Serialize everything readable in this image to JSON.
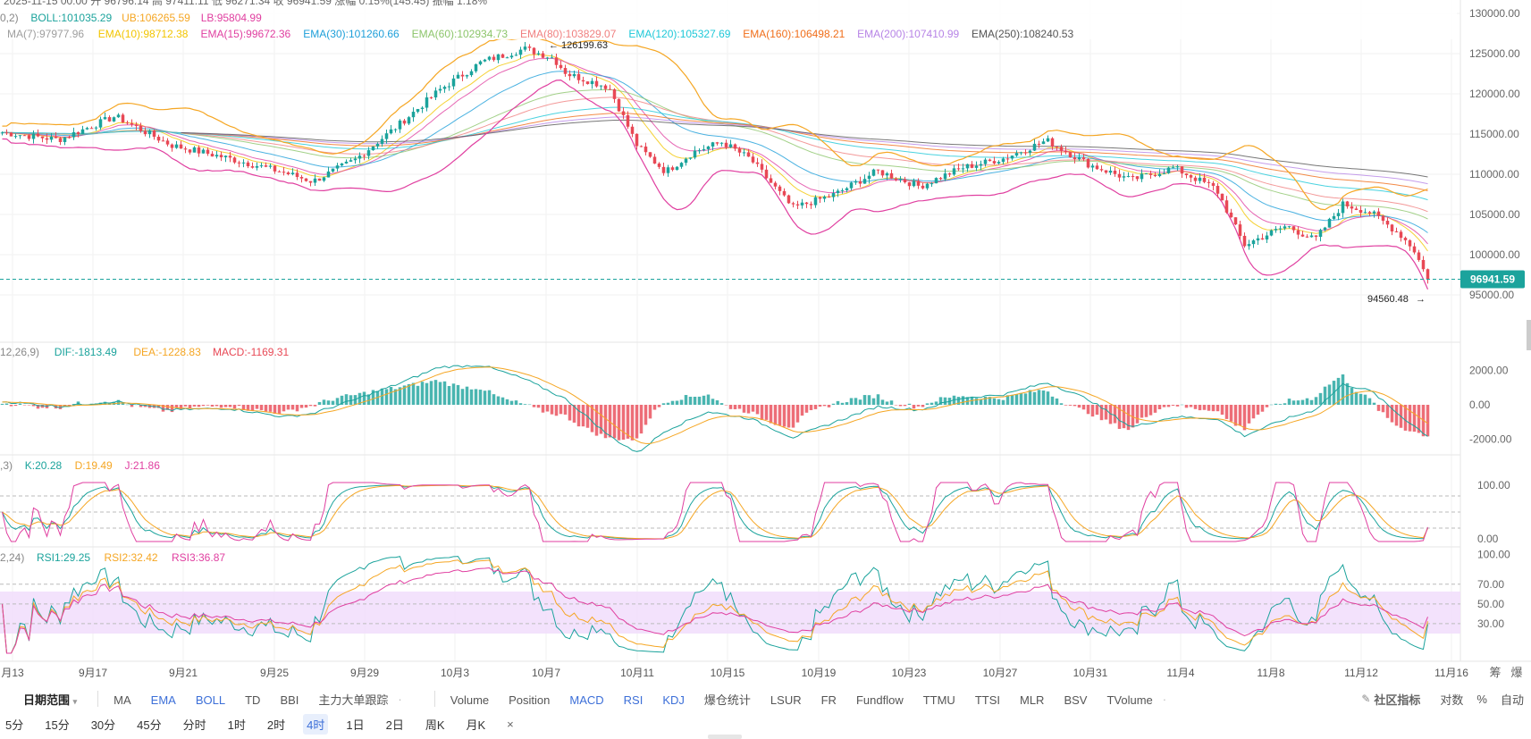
{
  "header": {
    "ohlc_line": "2025-11-15 00:00 开 96796.14 高 97411.11 低 96271.34 收 96941.59 涨幅 0.15%(145.45) 振幅 1.18%",
    "boll_prefix": "0,2)",
    "boll": [
      {
        "text": "BOLL:101035.29",
        "color": "#1ba39c"
      },
      {
        "text": "UB:106265.59",
        "color": "#f5a623"
      },
      {
        "text": "LB:95804.99",
        "color": "#e03fa0"
      }
    ],
    "ma_ema": [
      {
        "text": "MA(7):97977.96",
        "color": "#9e9e9e"
      },
      {
        "text": "EMA(10):98712.38",
        "color": "#f2c500"
      },
      {
        "text": "EMA(15):99672.36",
        "color": "#e03fa0"
      },
      {
        "text": "EMA(30):101260.66",
        "color": "#1e9fd9"
      },
      {
        "text": "EMA(60):102934.73",
        "color": "#8cc56b"
      },
      {
        "text": "EMA(80):103829.07",
        "color": "#f08080"
      },
      {
        "text": "EMA(120):105327.69",
        "color": "#1ec8d8"
      },
      {
        "text": "EMA(160):106498.21",
        "color": "#f06e1a"
      },
      {
        "text": "EMA(200):107410.99",
        "color": "#b784e6"
      },
      {
        "text": "EMA(250):108240.53",
        "color": "#555555"
      }
    ],
    "macd_prefix": "12,26,9)",
    "macd": [
      {
        "text": "DIF:-1813.49",
        "color": "#1ba39c"
      },
      {
        "text": "DEA:-1228.83",
        "color": "#f5a623"
      },
      {
        "text": "MACD:-1169.31",
        "color": "#e84855"
      }
    ],
    "kdj_prefix": ",3)",
    "kdj": [
      {
        "text": "K:20.28",
        "color": "#1ba39c"
      },
      {
        "text": "D:19.49",
        "color": "#f5a623"
      },
      {
        "text": "J:21.86",
        "color": "#e03fa0"
      }
    ],
    "rsi_prefix": "2,24)",
    "rsi": [
      {
        "text": "RSI1:29.25",
        "color": "#1ba39c"
      },
      {
        "text": "RSI2:32.42",
        "color": "#f5a623"
      },
      {
        "text": "RSI3:36.87",
        "color": "#e03fa0"
      }
    ]
  },
  "chart_data": {
    "type": "candlestick",
    "interval": "4时",
    "x_tick_labels": [
      "月13",
      "9月17",
      "9月21",
      "9月25",
      "9月29",
      "10月3",
      "10月7",
      "10月11",
      "10月15",
      "10月19",
      "10月23",
      "10月27",
      "10月31",
      "11月4",
      "11月8",
      "11月12",
      "11月16"
    ],
    "price_axis": {
      "ticks": [
        130000,
        125000,
        120000,
        115000,
        110000,
        105000,
        100000,
        95000
      ],
      "labels": [
        "130000.00",
        "125000.00",
        "120000.00",
        "115000.00",
        "110000.00",
        "105000.00",
        "100000.00",
        "95000.00"
      ]
    },
    "last_price": {
      "value": 96941.59,
      "label": "96941.59"
    },
    "high_marker": {
      "value": 126199.63,
      "label": "126199.63"
    },
    "low_marker": {
      "value": 94560.48,
      "label": "94560.48"
    },
    "close_anchors": [
      [
        0,
        115200
      ],
      [
        4,
        114300
      ],
      [
        8,
        117200
      ],
      [
        12,
        113600
      ],
      [
        16,
        112000
      ],
      [
        20,
        110200
      ],
      [
        22,
        109100
      ],
      [
        25,
        111800
      ],
      [
        28,
        116000
      ],
      [
        31,
        120500
      ],
      [
        34,
        124000
      ],
      [
        37,
        125600
      ],
      [
        39,
        124500
      ],
      [
        40,
        122500
      ],
      [
        43,
        120800
      ],
      [
        45,
        113500
      ],
      [
        47,
        110300
      ],
      [
        49,
        112800
      ],
      [
        51,
        114000
      ],
      [
        53,
        111900
      ],
      [
        56,
        105800
      ],
      [
        59,
        107500
      ],
      [
        62,
        110400
      ],
      [
        65,
        108500
      ],
      [
        68,
        110800
      ],
      [
        71,
        112000
      ],
      [
        74,
        114200
      ],
      [
        77,
        111200
      ],
      [
        80,
        109300
      ],
      [
        83,
        110800
      ],
      [
        86,
        108200
      ],
      [
        88,
        101200
      ],
      [
        91,
        103600
      ],
      [
        93,
        101800
      ],
      [
        95,
        106300
      ],
      [
        97,
        105200
      ],
      [
        99,
        102600
      ],
      [
        100,
        100700
      ],
      [
        101,
        96941.59
      ]
    ],
    "macd_axis": {
      "ticks": [
        2000,
        0,
        -2000
      ],
      "labels": [
        "2000.00",
        "0.00",
        "-2000.00"
      ]
    },
    "macd_anchors": [
      [
        0,
        200
      ],
      [
        4,
        -100
      ],
      [
        8,
        200
      ],
      [
        12,
        -300
      ],
      [
        16,
        -200
      ],
      [
        20,
        -700
      ],
      [
        22,
        -500
      ],
      [
        25,
        300
      ],
      [
        28,
        1200
      ],
      [
        31,
        2200
      ],
      [
        34,
        2300
      ],
      [
        37,
        1500
      ],
      [
        40,
        300
      ],
      [
        43,
        -1800
      ],
      [
        45,
        -2800
      ],
      [
        47,
        -1500
      ],
      [
        50,
        -400
      ],
      [
        53,
        -800
      ],
      [
        56,
        -1900
      ],
      [
        59,
        -1000
      ],
      [
        62,
        -100
      ],
      [
        65,
        -300
      ],
      [
        68,
        400
      ],
      [
        71,
        600
      ],
      [
        74,
        1300
      ],
      [
        77,
        300
      ],
      [
        80,
        -1300
      ],
      [
        83,
        -700
      ],
      [
        86,
        -800
      ],
      [
        88,
        -1800
      ],
      [
        91,
        -800
      ],
      [
        93,
        -300
      ],
      [
        95,
        1200
      ],
      [
        97,
        800
      ],
      [
        99,
        -600
      ],
      [
        101,
        -1813
      ]
    ],
    "kdj_axis": {
      "ticks": [
        100,
        0
      ],
      "labels": [
        "100.00",
        "0.00"
      ]
    },
    "rsi_axis": {
      "ticks": [
        100,
        70,
        50,
        30
      ],
      "labels": [
        "100.00",
        "70.00",
        "50.00",
        "30.00"
      ]
    },
    "rsi_band": [
      30,
      70
    ]
  },
  "toolbar_indicators": {
    "date_range": "日期范围",
    "main": [
      {
        "label": "MA",
        "active": false
      },
      {
        "label": "EMA",
        "active": true
      },
      {
        "label": "BOLL",
        "active": true
      },
      {
        "label": "TD",
        "active": false
      },
      {
        "label": "BBI",
        "active": false
      },
      {
        "label": "主力大单跟踪",
        "active": false
      }
    ],
    "sub": [
      {
        "label": "Volume",
        "active": false
      },
      {
        "label": "Position",
        "active": false
      },
      {
        "label": "MACD",
        "active": true
      },
      {
        "label": "RSI",
        "active": true
      },
      {
        "label": "KDJ",
        "active": true
      },
      {
        "label": "爆仓统计",
        "active": false
      },
      {
        "label": "LSUR",
        "active": false
      },
      {
        "label": "FR",
        "active": false
      },
      {
        "label": "Fundflow",
        "active": false
      },
      {
        "label": "TTMU",
        "active": false
      },
      {
        "label": "TTSI",
        "active": false
      },
      {
        "label": "MLR",
        "active": false
      },
      {
        "label": "BSV",
        "active": false
      },
      {
        "label": "TVolume",
        "active": false
      }
    ],
    "community": "社区指标",
    "log_scale": "对数",
    "percent": "%",
    "auto": "自动",
    "right_top": [
      "筹",
      "爆"
    ]
  },
  "timeframes": {
    "items": [
      "5分",
      "15分",
      "30分",
      "45分",
      "分时",
      "1时",
      "2时",
      "4时",
      "1日",
      "2日",
      "周K",
      "月K"
    ],
    "active": "4时",
    "close": "×"
  }
}
